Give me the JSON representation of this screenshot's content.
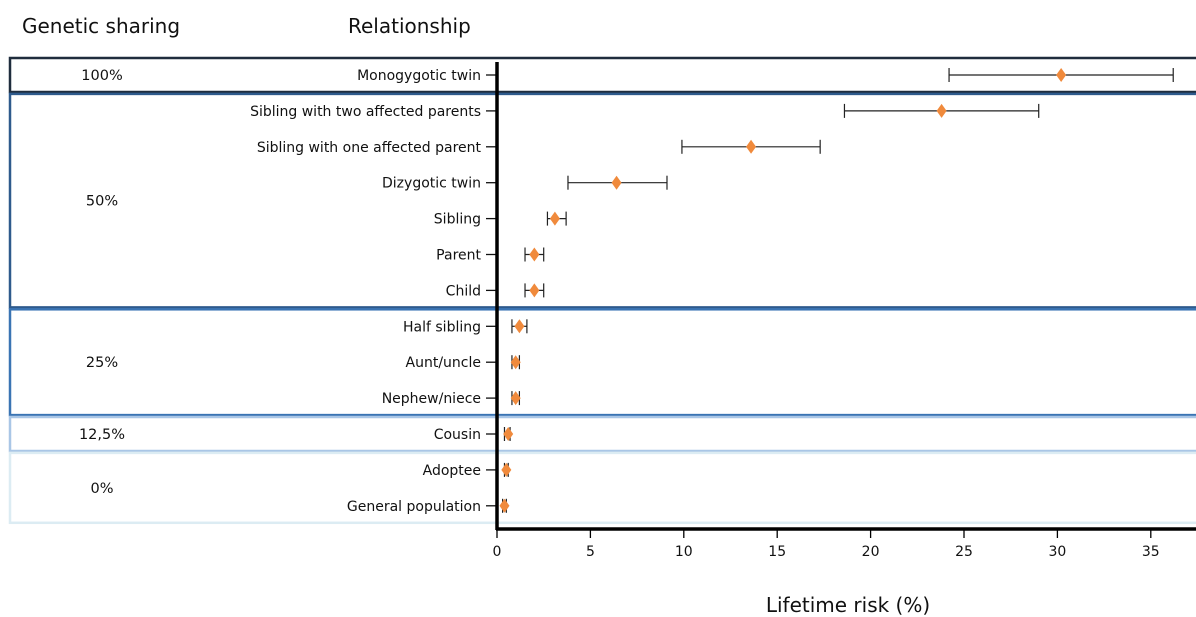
{
  "headers": {
    "genetic_sharing": "Genetic sharing",
    "relationship": "Relationship"
  },
  "groups": [
    {
      "label": "100%",
      "color": "#1f2d3d",
      "first": 0,
      "last": 0
    },
    {
      "label": "50%",
      "color": "#2e5a8c",
      "first": 1,
      "last": 6
    },
    {
      "label": "25%",
      "color": "#3a74b3",
      "first": 7,
      "last": 9
    },
    {
      "label": "12,5%",
      "color": "#a9c6e6",
      "first": 10,
      "last": 10
    },
    {
      "label": "0%",
      "color": "#dcecf3",
      "first": 11,
      "last": 12
    }
  ],
  "chart_data": {
    "type": "scatter",
    "xlabel": "Lifetime risk (%)",
    "xlim": [
      0,
      37
    ],
    "xticks": [
      0,
      5,
      10,
      15,
      20,
      25,
      30,
      35
    ],
    "marker_color": "#f08a3c",
    "categories": [
      "Monogygotic twin",
      "Sibling with two affected parents",
      "Sibling with one affected parent",
      "Dizygotic twin",
      "Sibling",
      "Parent",
      "Child",
      "Half sibling",
      "Aunt/uncle",
      "Nephew/niece",
      "Cousin",
      "Adoptee",
      "General population"
    ],
    "values": [
      30.2,
      23.8,
      13.6,
      6.4,
      3.1,
      2.0,
      2.0,
      1.2,
      1.0,
      1.0,
      0.6,
      0.5,
      0.4
    ],
    "lower": [
      24.2,
      18.6,
      9.9,
      3.8,
      2.7,
      1.5,
      1.5,
      0.8,
      0.8,
      0.8,
      0.4,
      0.4,
      0.3
    ],
    "upper": [
      36.2,
      29.0,
      17.3,
      9.1,
      3.7,
      2.5,
      2.5,
      1.6,
      1.2,
      1.2,
      0.7,
      0.6,
      0.5
    ]
  }
}
